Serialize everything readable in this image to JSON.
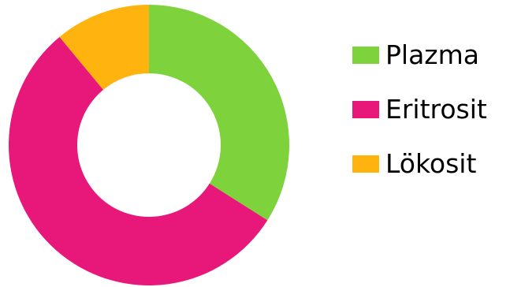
{
  "chart_data": {
    "type": "pie",
    "donut": true,
    "categories": [
      "Plazma",
      "Eritrosit",
      "Lökosit"
    ],
    "values": [
      34,
      55,
      11
    ],
    "colors": [
      "#7ED33C",
      "#E8187A",
      "#FFB30F"
    ],
    "legend_position": "right",
    "title": "",
    "start_angle_deg": 0,
    "direction": "clockwise"
  }
}
